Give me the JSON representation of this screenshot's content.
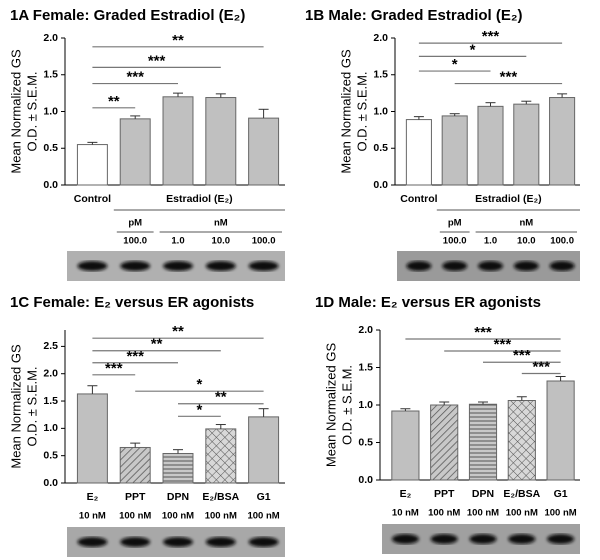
{
  "chart_data": [
    {
      "type": "bar",
      "title": "1A  Female:  Graded Estradiol (E₂)",
      "y_label": [
        "Mean Normalized GS",
        "O.D. ± S.E.M."
      ],
      "categories": [
        "Control",
        "100.0",
        "1.0",
        "10.0",
        "100.0"
      ],
      "groups": [
        {
          "label": "Estradiol (E₂)",
          "from": 1,
          "to": 4
        }
      ],
      "units": [
        {
          "label": "pM",
          "from": 1,
          "to": 1
        },
        {
          "label": "nM",
          "from": 2,
          "to": 4
        }
      ],
      "values": [
        0.55,
        0.9,
        1.2,
        1.19,
        0.91
      ],
      "errors": [
        0.03,
        0.04,
        0.05,
        0.05,
        0.12
      ],
      "colors": [
        "#ffffff",
        "#c0c0c0",
        "#c0c0c0",
        "#c0c0c0",
        "#c0c0c0"
      ],
      "ylim": [
        0,
        2
      ],
      "yticks": [
        {
          "value": 0,
          "label": "0.0"
        },
        0.5,
        {
          "value": 1,
          "label": "1.0"
        },
        1.5,
        {
          "value": 2,
          "label": "2.0"
        }
      ],
      "significance": [
        {
          "from": 0,
          "to": 4,
          "y": 1.88,
          "label": "**"
        },
        {
          "from": 0,
          "to": 3,
          "y": 1.6,
          "label": "***"
        },
        {
          "from": 0,
          "to": 2,
          "y": 1.38,
          "label": "***"
        },
        {
          "from": 0,
          "to": 1,
          "y": 1.05,
          "label": "**"
        }
      ]
    },
    {
      "type": "bar",
      "title": "1B  Male:  Graded Estradiol (E₂)",
      "y_label": [
        "Mean Normalized GS",
        "O.D. ± S.E.M."
      ],
      "categories": [
        "Control",
        "100.0",
        "1.0",
        "10.0",
        "100.0"
      ],
      "groups": [
        {
          "label": "Estradiol (E₂)",
          "from": 1,
          "to": 4
        }
      ],
      "units": [
        {
          "label": "pM",
          "from": 1,
          "to": 1
        },
        {
          "label": "nM",
          "from": 2,
          "to": 4
        }
      ],
      "values": [
        0.89,
        0.94,
        1.07,
        1.1,
        1.19
      ],
      "errors": [
        0.04,
        0.03,
        0.05,
        0.04,
        0.05
      ],
      "colors": [
        "#ffffff",
        "#c0c0c0",
        "#c0c0c0",
        "#c0c0c0",
        "#c0c0c0"
      ],
      "ylim": [
        0,
        2
      ],
      "yticks": [
        {
          "value": 0,
          "label": "0.0"
        },
        0.5,
        {
          "value": 1,
          "label": "1.0"
        },
        1.5,
        {
          "value": 2,
          "label": "2.0"
        }
      ],
      "significance": [
        {
          "from": 0,
          "to": 4,
          "y": 1.93,
          "label": "***"
        },
        {
          "from": 0,
          "to": 3,
          "y": 1.75,
          "label": "*"
        },
        {
          "from": 0,
          "to": 2,
          "y": 1.55,
          "label": "*"
        },
        {
          "from": 1,
          "to": 4,
          "y": 1.38,
          "label": "***"
        }
      ]
    },
    {
      "type": "bar",
      "title": "1C  Female:  E₂ versus ER agonists",
      "y_label": [
        "Mean Normalized GS",
        "O.D. ± S.E.M."
      ],
      "categories": [
        "E₂",
        "PPT",
        "DPN",
        "E₂/BSA",
        "G1"
      ],
      "sublabels": [
        "10 nM",
        "100 nM",
        "100 nM",
        "100 nM",
        "100 nM"
      ],
      "values": [
        1.63,
        0.65,
        0.54,
        0.99,
        1.21
      ],
      "errors": [
        0.15,
        0.08,
        0.07,
        0.08,
        0.15
      ],
      "colors": [
        "#c0c0c0",
        "#c0c0c0",
        "#c0c0c0",
        "#c0c0c0",
        "#c0c0c0"
      ],
      "patterns": [
        "solid",
        "diagonal",
        "horizontal",
        "crosshatch",
        "solid"
      ],
      "ylim": [
        0,
        2.8
      ],
      "yticks": [
        {
          "value": 0,
          "label": "0.0"
        },
        0.5,
        {
          "value": 1,
          "label": "1.0"
        },
        1.5,
        {
          "value": 2,
          "label": "2.0"
        },
        2.5
      ],
      "significance": [
        {
          "from": 0,
          "to": 4,
          "y": 2.65,
          "label": "**"
        },
        {
          "from": 0,
          "to": 3,
          "y": 2.42,
          "label": "**"
        },
        {
          "from": 0,
          "to": 2,
          "y": 2.2,
          "label": "***"
        },
        {
          "from": 0,
          "to": 1,
          "y": 1.98,
          "label": "***"
        },
        {
          "from": 1,
          "to": 4,
          "y": 1.68,
          "label": "*"
        },
        {
          "from": 2,
          "to": 4,
          "y": 1.45,
          "label": "**"
        },
        {
          "from": 2,
          "to": 3,
          "y": 1.22,
          "label": "*"
        }
      ]
    },
    {
      "type": "bar",
      "title": "1D  Male:  E₂ versus ER agonists",
      "y_label": [
        "Mean Normalized GS",
        "O.D. ± S.E.M."
      ],
      "categories": [
        "E₂",
        "PPT",
        "DPN",
        "E₂/BSA",
        "G1"
      ],
      "sublabels": [
        "10 nM",
        "100 nM",
        "100 nM",
        "100 nM",
        "100 nM"
      ],
      "values": [
        0.92,
        1.0,
        1.01,
        1.06,
        1.32
      ],
      "errors": [
        0.03,
        0.04,
        0.03,
        0.05,
        0.06
      ],
      "colors": [
        "#c0c0c0",
        "#c0c0c0",
        "#c0c0c0",
        "#c0c0c0",
        "#c0c0c0"
      ],
      "patterns": [
        "solid",
        "diagonal",
        "horizontal",
        "crosshatch",
        "solid"
      ],
      "ylim": [
        0,
        2
      ],
      "yticks": [
        {
          "value": 0,
          "label": "0.0"
        },
        0.5,
        {
          "value": 1,
          "label": "1.0"
        },
        1.5,
        {
          "value": 2,
          "label": "2.0"
        }
      ],
      "significance": [
        {
          "from": 0,
          "to": 4,
          "y": 1.88,
          "label": "***"
        },
        {
          "from": 1,
          "to": 4,
          "y": 1.72,
          "label": "***"
        },
        {
          "from": 2,
          "to": 4,
          "y": 1.57,
          "label": "***"
        },
        {
          "from": 3,
          "to": 4,
          "y": 1.42,
          "label": "***"
        }
      ]
    }
  ]
}
